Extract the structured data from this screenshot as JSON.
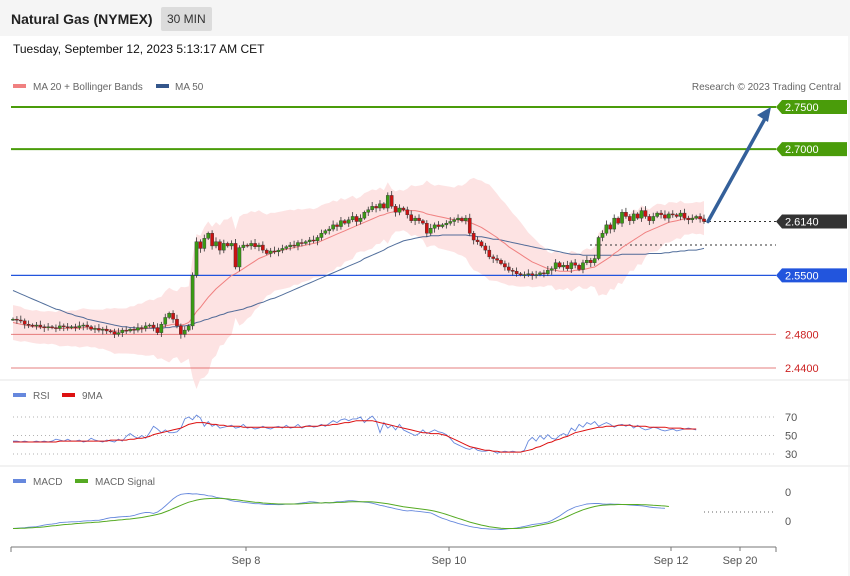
{
  "header": {
    "title": "Natural Gas (NYMEX)",
    "interval": "30 MIN",
    "datetime": "Tuesday, September 12, 2023 5:13:17 AM CET"
  },
  "legend": {
    "ma20": "MA 20 + Bollinger Bands",
    "ma50": "MA 50",
    "credit": "Research © 2023 Trading Central",
    "rsi": "RSI",
    "rsi_ma": "9MA",
    "macd": "MACD",
    "macd_signal": "MACD Signal"
  },
  "colors": {
    "ma20": "#f08080",
    "ma50": "#34568b",
    "bollinger": "#fde0e0",
    "resistance": "#4a9c0a",
    "pivot": "#2255dd",
    "support": "#e06060",
    "current": "#333333",
    "up_candle": "#3a9a14",
    "down_candle": "#cc1111",
    "arrow": "#34609a",
    "rsi": "#6688dd",
    "rsi_ma": "#dd1111",
    "macd": "#6688dd",
    "macd_signal": "#55aa22"
  },
  "chart_data": [
    {
      "type": "line",
      "title": "Natural Gas (NYMEX)",
      "x_ticks": [
        "Sep 8",
        "Sep 10",
        "Sep 12",
        "Sep 20"
      ],
      "levels": [
        {
          "value": 2.75,
          "label": "2.7500",
          "kind": "resistance"
        },
        {
          "value": 2.7,
          "label": "2.7000",
          "kind": "resistance"
        },
        {
          "value": 2.614,
          "label": "2.6140",
          "kind": "current"
        },
        {
          "value": 2.55,
          "label": "2.5500",
          "kind": "pivot"
        },
        {
          "value": 2.48,
          "label": "2.4800",
          "kind": "support"
        },
        {
          "value": 2.44,
          "label": "2.4400",
          "kind": "support"
        }
      ],
      "close": [
        2.498,
        2.497,
        2.496,
        2.492,
        2.491,
        2.49,
        2.491,
        2.489,
        2.488,
        2.489,
        2.488,
        2.487,
        2.49,
        2.489,
        2.488,
        2.489,
        2.488,
        2.49,
        2.491,
        2.489,
        2.486,
        2.487,
        2.485,
        2.486,
        2.484,
        2.483,
        2.48,
        2.482,
        2.485,
        2.484,
        2.486,
        2.485,
        2.488,
        2.487,
        2.49,
        2.491,
        2.488,
        2.482,
        2.492,
        2.5,
        2.505,
        2.498,
        2.49,
        2.48,
        2.485,
        2.49,
        2.55,
        2.59,
        2.582,
        2.594,
        2.6,
        2.585,
        2.59,
        2.58,
        2.588,
        2.585,
        2.588,
        2.56,
        2.583,
        2.586,
        2.585,
        2.588,
        2.584,
        2.586,
        2.58,
        2.576,
        2.579,
        2.578,
        2.58,
        2.582,
        2.584,
        2.586,
        2.585,
        2.589,
        2.588,
        2.59,
        2.592,
        2.591,
        2.595,
        2.6,
        2.603,
        2.605,
        2.61,
        2.608,
        2.615,
        2.612,
        2.616,
        2.62,
        2.614,
        2.618,
        2.625,
        2.628,
        2.632,
        2.63,
        2.635,
        2.63,
        2.645,
        2.632,
        2.625,
        2.63,
        2.628,
        2.622,
        2.615,
        2.618,
        2.615,
        2.612,
        2.6,
        2.606,
        2.61,
        2.608,
        2.61,
        2.612,
        2.614,
        2.616,
        2.618,
        2.615,
        2.618,
        2.6,
        2.592,
        2.59,
        2.585,
        2.58,
        2.572,
        2.57,
        2.568,
        2.564,
        2.56,
        2.556,
        2.555,
        2.552,
        2.551,
        2.551,
        2.552,
        2.55,
        2.551,
        2.553,
        2.552,
        2.556,
        2.558,
        2.565,
        2.56,
        2.562,
        2.558,
        2.565,
        2.562,
        2.557,
        2.565,
        2.568,
        2.565,
        2.57,
        2.595,
        2.6,
        2.61,
        2.605,
        2.618,
        2.612,
        2.625,
        2.62,
        2.615,
        2.623,
        2.618,
        2.627,
        2.62,
        2.615,
        2.62,
        2.624,
        2.622,
        2.618,
        2.623,
        2.622,
        2.62,
        2.624,
        2.618,
        2.616,
        2.618,
        2.62,
        2.617,
        2.614
      ],
      "ma20": [
        2.494,
        2.493,
        2.492,
        2.491,
        2.49,
        2.489,
        2.489,
        2.488,
        2.488,
        2.488,
        2.488,
        2.487,
        2.487,
        2.487,
        2.487,
        2.487,
        2.487,
        2.487,
        2.488,
        2.488,
        2.487,
        2.487,
        2.486,
        2.486,
        2.486,
        2.485,
        2.484,
        2.484,
        2.484,
        2.484,
        2.485,
        2.485,
        2.486,
        2.486,
        2.487,
        2.488,
        2.488,
        2.487,
        2.488,
        2.49,
        2.491,
        2.492,
        2.492,
        2.491,
        2.492,
        2.494,
        2.5,
        2.507,
        2.512,
        2.518,
        2.524,
        2.529,
        2.534,
        2.538,
        2.542,
        2.546,
        2.55,
        2.552,
        2.555,
        2.558,
        2.561,
        2.564,
        2.567,
        2.57,
        2.572,
        2.574,
        2.576,
        2.578,
        2.579,
        2.58,
        2.581,
        2.582,
        2.583,
        2.584,
        2.585,
        2.586,
        2.587,
        2.588,
        2.589,
        2.591,
        2.593,
        2.595,
        2.597,
        2.599,
        2.601,
        2.603,
        2.605,
        2.607,
        2.609,
        2.611,
        2.613,
        2.615,
        2.617,
        2.619,
        2.621,
        2.622,
        2.624,
        2.625,
        2.626,
        2.627,
        2.627,
        2.627,
        2.627,
        2.627,
        2.626,
        2.625,
        2.623,
        2.622,
        2.621,
        2.62,
        2.619,
        2.618,
        2.617,
        2.616,
        2.616,
        2.615,
        2.615,
        2.613,
        2.611,
        2.609,
        2.607,
        2.604,
        2.601,
        2.598,
        2.595,
        2.591,
        2.588,
        2.584,
        2.581,
        2.578,
        2.575,
        2.572,
        2.569,
        2.566,
        2.564,
        2.562,
        2.56,
        2.558,
        2.557,
        2.556,
        2.555,
        2.555,
        2.555,
        2.555,
        2.556,
        2.556,
        2.557,
        2.558,
        2.559,
        2.56,
        2.563,
        2.566,
        2.569,
        2.572,
        2.576,
        2.579,
        2.583,
        2.586,
        2.589,
        2.592,
        2.595,
        2.598,
        2.601,
        2.603,
        2.605,
        2.607,
        2.609,
        2.611,
        2.613,
        2.614,
        2.615,
        2.616,
        2.617,
        2.617,
        2.618,
        2.618,
        2.618,
        2.618
      ],
      "ma50": [
        2.532,
        2.53,
        2.528,
        2.526,
        2.524,
        2.522,
        2.52,
        2.518,
        2.516,
        2.514,
        2.512,
        2.51,
        2.509,
        2.507,
        2.505,
        2.504,
        2.502,
        2.501,
        2.5,
        2.498,
        2.497,
        2.496,
        2.495,
        2.494,
        2.493,
        2.492,
        2.491,
        2.49,
        2.489,
        2.489,
        2.488,
        2.488,
        2.487,
        2.487,
        2.487,
        2.487,
        2.487,
        2.487,
        2.487,
        2.488,
        2.488,
        2.489,
        2.489,
        2.49,
        2.49,
        2.491,
        2.492,
        2.494,
        2.495,
        2.497,
        2.498,
        2.5,
        2.501,
        2.503,
        2.504,
        2.506,
        2.507,
        2.508,
        2.509,
        2.51,
        2.512,
        2.513,
        2.515,
        2.517,
        2.518,
        2.52,
        2.522,
        2.523,
        2.525,
        2.527,
        2.529,
        2.531,
        2.533,
        2.535,
        2.537,
        2.539,
        2.541,
        2.543,
        2.545,
        2.547,
        2.549,
        2.551,
        2.553,
        2.555,
        2.557,
        2.559,
        2.561,
        2.563,
        2.565,
        2.567,
        2.57,
        2.572,
        2.574,
        2.576,
        2.578,
        2.58,
        2.583,
        2.585,
        2.587,
        2.589,
        2.591,
        2.592,
        2.593,
        2.594,
        2.595,
        2.596,
        2.596,
        2.597,
        2.597,
        2.597,
        2.598,
        2.598,
        2.598,
        2.598,
        2.598,
        2.598,
        2.598,
        2.597,
        2.597,
        2.596,
        2.596,
        2.595,
        2.594,
        2.593,
        2.593,
        2.592,
        2.591,
        2.59,
        2.589,
        2.588,
        2.587,
        2.586,
        2.585,
        2.584,
        2.583,
        2.582,
        2.581,
        2.581,
        2.58,
        2.579,
        2.578,
        2.577,
        2.576,
        2.575,
        2.575,
        2.575,
        2.574,
        2.574,
        2.574,
        2.574,
        2.574,
        2.574,
        2.574,
        2.574,
        2.574,
        2.574,
        2.575,
        2.575,
        2.575,
        2.575,
        2.575,
        2.575,
        2.575,
        2.576,
        2.576,
        2.576,
        2.576,
        2.577,
        2.577,
        2.578,
        2.578,
        2.579,
        2.579,
        2.58,
        2.58,
        2.58,
        2.581,
        2.582
      ],
      "forecast": [
        2.614,
        2.75
      ]
    },
    {
      "type": "line",
      "ylim": [
        30,
        70
      ],
      "y_ticks": [
        "70",
        "50",
        "30"
      ],
      "rsi": [
        44,
        44,
        43,
        44,
        43,
        43,
        44,
        43,
        44,
        43,
        44,
        46,
        45,
        44,
        46,
        44,
        44,
        45,
        43,
        44,
        47,
        45,
        44,
        43,
        45,
        44,
        43,
        46,
        44,
        49,
        52,
        49,
        47,
        50,
        47,
        53,
        60,
        57,
        53,
        56,
        53,
        53,
        54,
        58,
        68,
        70,
        67,
        72,
        69,
        60,
        65,
        60,
        62,
        58,
        59,
        60,
        61,
        58,
        59,
        62,
        58,
        59,
        57,
        58,
        60,
        58,
        57,
        59,
        60,
        58,
        61,
        58,
        59,
        62,
        58,
        60,
        61,
        59,
        60,
        62,
        60,
        63,
        66,
        64,
        67,
        68,
        66,
        68,
        68,
        70,
        64,
        68,
        71,
        66,
        53,
        64,
        58,
        61,
        56,
        62,
        56,
        54,
        52,
        50,
        52,
        56,
        52,
        54,
        56,
        54,
        53,
        51,
        47,
        42,
        40,
        38,
        36,
        35,
        37,
        34,
        33,
        33,
        34,
        33,
        31,
        32,
        33,
        32,
        33,
        32,
        32,
        34,
        44,
        48,
        44,
        50,
        46,
        51,
        47,
        46,
        50,
        52,
        50,
        58,
        55,
        62,
        59,
        64,
        62,
        65,
        60,
        62,
        64,
        62,
        59,
        61,
        62,
        60,
        62,
        58,
        61,
        58,
        56,
        57,
        59,
        58,
        56,
        55,
        56,
        57,
        55,
        56,
        57,
        58,
        57,
        56
      ],
      "rsi_ma": [
        43,
        43,
        43,
        43,
        43,
        43,
        43,
        43,
        43,
        43,
        43,
        43,
        44,
        44,
        44,
        44,
        44,
        44,
        44,
        44,
        44,
        44,
        44,
        44,
        44,
        45,
        45,
        45,
        45,
        45,
        46,
        46,
        47,
        47,
        48,
        49,
        51,
        52,
        53,
        54,
        55,
        56,
        57,
        58,
        60,
        62,
        63,
        64,
        64,
        64,
        63,
        62,
        62,
        61,
        61,
        60,
        60,
        60,
        60,
        59,
        59,
        59,
        59,
        59,
        59,
        59,
        59,
        59,
        59,
        59,
        59,
        59,
        59,
        59,
        59,
        60,
        60,
        60,
        60,
        61,
        61,
        61,
        62,
        62,
        63,
        64,
        64,
        65,
        66,
        66,
        66,
        66,
        66,
        65,
        64,
        63,
        62,
        61,
        60,
        59,
        58,
        57,
        56,
        55,
        54,
        53,
        53,
        52,
        52,
        52,
        51,
        50,
        48,
        46,
        44,
        42,
        40,
        38,
        37,
        36,
        35,
        34,
        34,
        33,
        33,
        32,
        32,
        32,
        32,
        32,
        32,
        33,
        34,
        35,
        37,
        38,
        40,
        42,
        43,
        45,
        46,
        48,
        49,
        51,
        53,
        54,
        55,
        56,
        57,
        58,
        59,
        59,
        60,
        60,
        60,
        61,
        61,
        61,
        61,
        60,
        60,
        60,
        60,
        59,
        59,
        59,
        59,
        59,
        58,
        58,
        58,
        58,
        57,
        57,
        57,
        57
      ]
    },
    {
      "type": "line",
      "y_ticks": [
        "0",
        "0"
      ],
      "macd": [
        -0.0041,
        -0.004,
        -0.0039,
        -0.0038,
        -0.0036,
        -0.0035,
        -0.0034,
        -0.0031,
        -0.0028,
        -0.0025,
        -0.0024,
        -0.0022,
        -0.0018,
        -0.0017,
        -0.0016,
        -0.0015,
        -0.0015,
        -0.0014,
        -0.0012,
        -0.0011,
        -0.0011,
        -0.0009,
        -0.0009,
        -0.0006,
        -0.0002,
        0.0001,
        0.0002,
        0.0004,
        0.0005,
        0.0006,
        0.0007,
        0.001,
        0.0015,
        0.0019,
        0.0022,
        0.0021,
        0.0018,
        0.0023,
        0.0034,
        0.0047,
        0.0061,
        0.0075,
        0.0086,
        0.0093,
        0.0095,
        0.0096,
        0.0094,
        0.0095,
        0.0092,
        0.0091,
        0.0087,
        0.0086,
        0.0081,
        0.0079,
        0.0077,
        0.0072,
        0.0068,
        0.0065,
        0.0064,
        0.0061,
        0.006,
        0.0058,
        0.0056,
        0.0056,
        0.0054,
        0.0053,
        0.0053,
        0.0053,
        0.0052,
        0.0053,
        0.0055,
        0.0054,
        0.0055,
        0.0057,
        0.0059,
        0.0061,
        0.0064,
        0.0063,
        0.0061,
        0.0058,
        0.0061,
        0.0059,
        0.0061,
        0.0064,
        0.0064,
        0.0066,
        0.0068,
        0.0068,
        0.0066,
        0.0064,
        0.0062,
        0.0061,
        0.0058,
        0.0054,
        0.005,
        0.0047,
        0.0043,
        0.004,
        0.0036,
        0.0033,
        0.003,
        0.0028,
        0.0029,
        0.0027,
        0.0026,
        0.0024,
        0.0022,
        0.002,
        0.0013,
        0.0005,
        -0.0001,
        -0.0006,
        -0.0012,
        -0.0016,
        -0.0021,
        -0.0025,
        -0.0029,
        -0.0033,
        -0.0036,
        -0.0038,
        -0.0041,
        -0.0042,
        -0.0043,
        -0.0044,
        -0.0044,
        -0.0045,
        -0.0044,
        -0.0042,
        -0.0041,
        -0.0039,
        -0.0036,
        -0.0033,
        -0.003,
        -0.0026,
        -0.0024,
        -0.0022,
        -0.0019,
        -0.0016,
        -0.001,
        -0.0001,
        0.0008,
        0.0019,
        0.0029,
        0.0036,
        0.0043,
        0.0047,
        0.0051,
        0.0055,
        0.0056,
        0.0057,
        0.0057,
        0.0055,
        0.0054,
        0.0055,
        0.0054,
        0.0054,
        0.0053,
        0.0052,
        0.0051,
        0.005,
        0.0049,
        0.0048,
        0.0046,
        0.0043,
        0.0041,
        0.004,
        0.0039,
        0.0038
      ],
      "macd_signal": [
        -0.0041,
        -0.0041,
        -0.004,
        -0.004,
        -0.0039,
        -0.0038,
        -0.0037,
        -0.0036,
        -0.0035,
        -0.0033,
        -0.0031,
        -0.003,
        -0.0028,
        -0.0026,
        -0.0025,
        -0.0024,
        -0.0022,
        -0.0021,
        -0.002,
        -0.0019,
        -0.0018,
        -0.0017,
        -0.0016,
        -0.0014,
        -0.0013,
        -0.0011,
        -0.001,
        -0.0008,
        -0.0007,
        -0.0005,
        -0.0004,
        -0.0002,
        0.0,
        0.0002,
        0.0005,
        0.0008,
        0.0011,
        0.0014,
        0.0018,
        0.0024,
        0.003,
        0.0037,
        0.0043,
        0.005,
        0.0056,
        0.0062,
        0.0066,
        0.007,
        0.0073,
        0.0075,
        0.0076,
        0.0077,
        0.0077,
        0.0077,
        0.0076,
        0.0075,
        0.0073,
        0.0072,
        0.007,
        0.0068,
        0.0066,
        0.0064,
        0.0062,
        0.0061,
        0.0059,
        0.0058,
        0.0057,
        0.0056,
        0.0055,
        0.0055,
        0.0055,
        0.0055,
        0.0055,
        0.0055,
        0.0056,
        0.0057,
        0.0058,
        0.0059,
        0.0059,
        0.0059,
        0.006,
        0.006,
        0.006,
        0.0061,
        0.0061,
        0.0062,
        0.0063,
        0.0064,
        0.0064,
        0.0064,
        0.0064,
        0.0064,
        0.0063,
        0.0062,
        0.006,
        0.0058,
        0.0056,
        0.0053,
        0.005,
        0.0047,
        0.0044,
        0.0042,
        0.004,
        0.0038,
        0.0036,
        0.0034,
        0.0032,
        0.003,
        0.0027,
        0.0023,
        0.0019,
        0.0014,
        0.0009,
        0.0004,
        -0.0001,
        -0.0006,
        -0.0011,
        -0.0016,
        -0.002,
        -0.0024,
        -0.0028,
        -0.0031,
        -0.0034,
        -0.0036,
        -0.0038,
        -0.004,
        -0.0041,
        -0.0041,
        -0.0041,
        -0.0041,
        -0.004,
        -0.0038,
        -0.0036,
        -0.0034,
        -0.0031,
        -0.0028,
        -0.0025,
        -0.0022,
        -0.0018,
        -0.0013,
        -0.0007,
        -0.0001,
        0.0006,
        0.0013,
        0.002,
        0.0026,
        0.0032,
        0.0037,
        0.0041,
        0.0045,
        0.0048,
        0.005,
        0.0051,
        0.0052,
        0.0052,
        0.0053,
        0.0053,
        0.0053,
        0.0053,
        0.0053,
        0.0053,
        0.0052,
        0.0052,
        0.0051,
        0.005,
        0.0049,
        0.0048,
        0.0047,
        0.0045
      ]
    }
  ]
}
